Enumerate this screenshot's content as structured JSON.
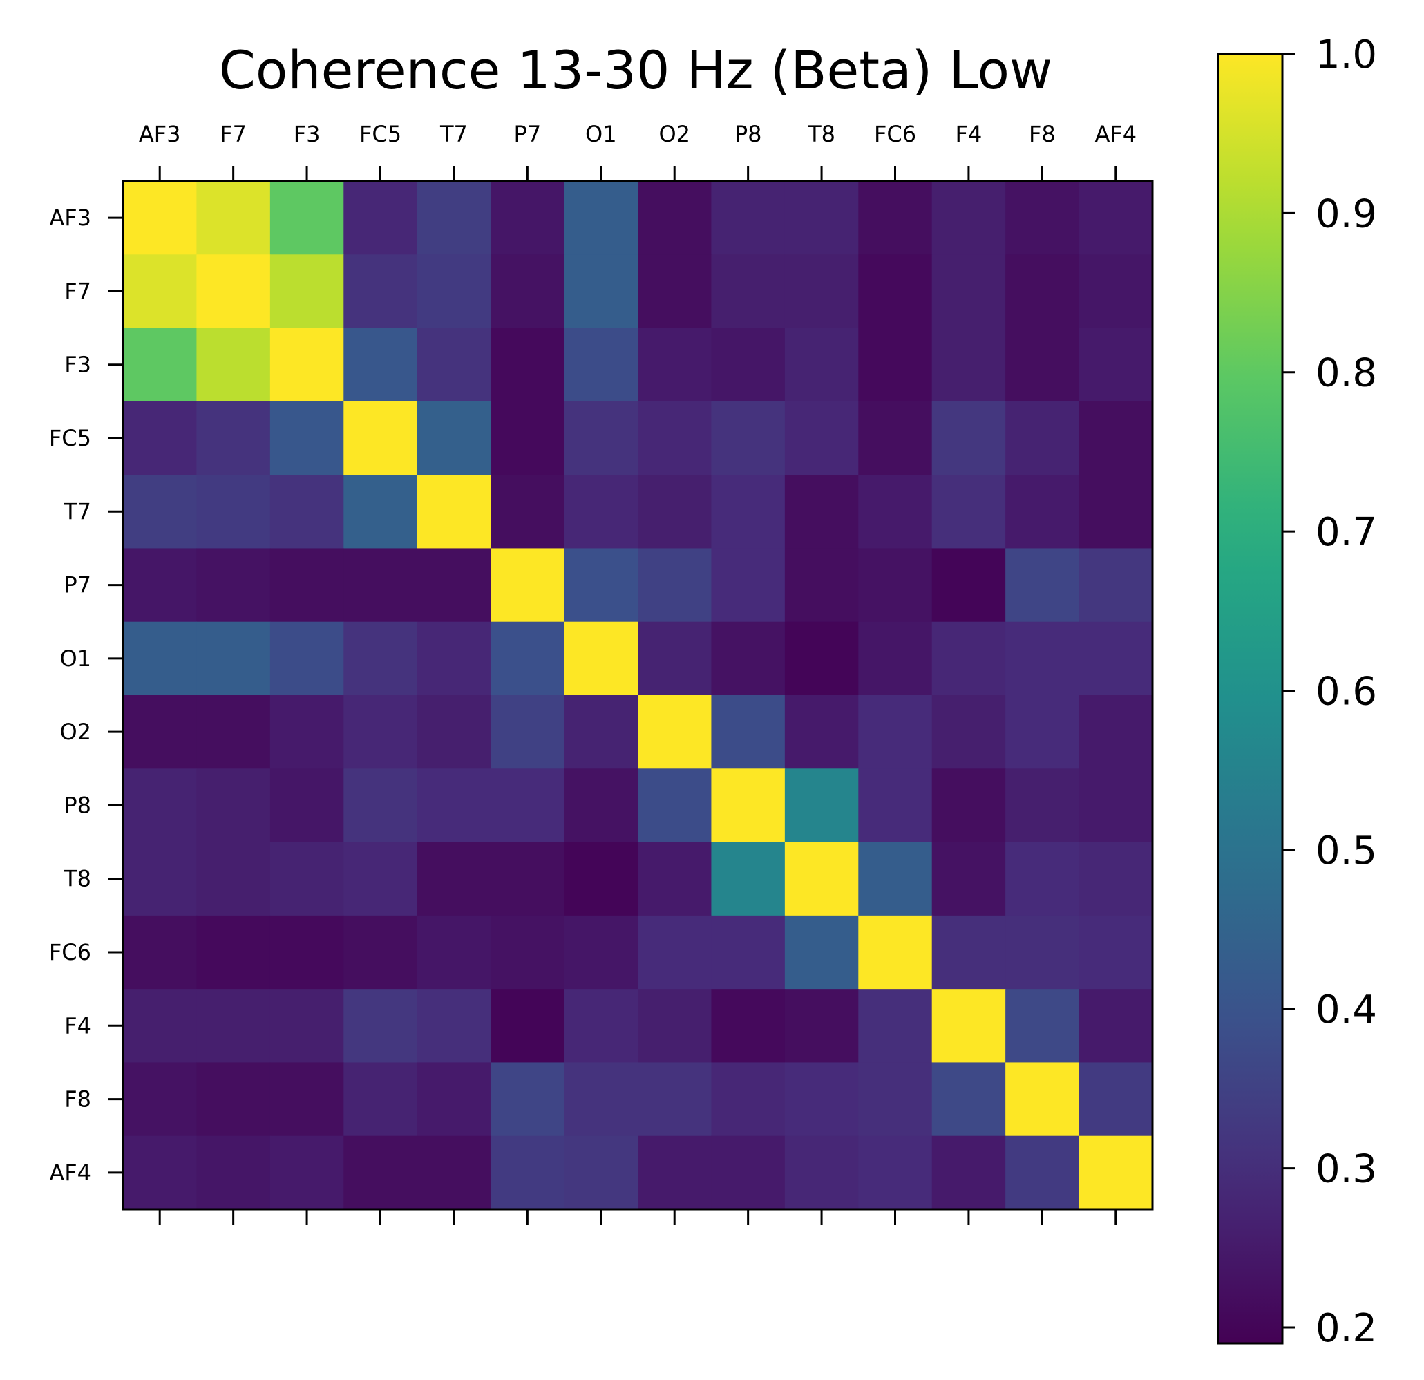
{
  "chart_data": {
    "type": "heatmap",
    "title": "Coherence 13-30 Hz (Beta) Low",
    "x_labels": [
      "AF3",
      "F7",
      "F3",
      "FC5",
      "T7",
      "P7",
      "O1",
      "O2",
      "P8",
      "T8",
      "FC6",
      "F4",
      "F8",
      "AF4"
    ],
    "y_labels": [
      "AF3",
      "F7",
      "F3",
      "FC5",
      "T7",
      "P7",
      "O1",
      "O2",
      "P8",
      "T8",
      "FC6",
      "F4",
      "F8",
      "AF4"
    ],
    "x_tick_position": "top",
    "colormap": "viridis",
    "colorbar": {
      "min": 0.19,
      "max": 1.0,
      "ticks": [
        0.2,
        0.3,
        0.4,
        0.5,
        0.6,
        0.7,
        0.8,
        0.9,
        1.0
      ],
      "tick_labels": [
        "0.2",
        "0.3",
        "0.4",
        "0.5",
        "0.6",
        "0.7",
        "0.8",
        "0.9",
        "1.0"
      ]
    },
    "values": [
      [
        1.0,
        0.96,
        0.8,
        0.28,
        0.34,
        0.24,
        0.43,
        0.22,
        0.27,
        0.27,
        0.22,
        0.26,
        0.23,
        0.25
      ],
      [
        0.96,
        1.0,
        0.92,
        0.31,
        0.33,
        0.23,
        0.43,
        0.22,
        0.26,
        0.26,
        0.21,
        0.26,
        0.22,
        0.24
      ],
      [
        0.8,
        0.92,
        1.0,
        0.41,
        0.31,
        0.21,
        0.38,
        0.25,
        0.24,
        0.27,
        0.21,
        0.26,
        0.22,
        0.25
      ],
      [
        0.28,
        0.31,
        0.41,
        1.0,
        0.44,
        0.21,
        0.31,
        0.28,
        0.31,
        0.28,
        0.22,
        0.32,
        0.27,
        0.22
      ],
      [
        0.34,
        0.33,
        0.31,
        0.44,
        1.0,
        0.22,
        0.28,
        0.26,
        0.29,
        0.22,
        0.25,
        0.3,
        0.25,
        0.22
      ],
      [
        0.24,
        0.23,
        0.22,
        0.22,
        0.22,
        1.0,
        0.39,
        0.35,
        0.29,
        0.22,
        0.23,
        0.2,
        0.36,
        0.32
      ],
      [
        0.43,
        0.43,
        0.38,
        0.31,
        0.28,
        0.39,
        1.0,
        0.27,
        0.23,
        0.2,
        0.24,
        0.28,
        0.29,
        0.29
      ],
      [
        0.22,
        0.22,
        0.25,
        0.28,
        0.26,
        0.35,
        0.27,
        1.0,
        0.38,
        0.25,
        0.29,
        0.26,
        0.29,
        0.25
      ],
      [
        0.27,
        0.26,
        0.24,
        0.31,
        0.29,
        0.29,
        0.23,
        0.38,
        1.0,
        0.56,
        0.29,
        0.22,
        0.26,
        0.25
      ],
      [
        0.27,
        0.26,
        0.27,
        0.28,
        0.22,
        0.22,
        0.2,
        0.25,
        0.56,
        1.0,
        0.43,
        0.23,
        0.29,
        0.28
      ],
      [
        0.22,
        0.21,
        0.21,
        0.22,
        0.24,
        0.23,
        0.24,
        0.29,
        0.29,
        0.43,
        1.0,
        0.3,
        0.3,
        0.29
      ],
      [
        0.26,
        0.26,
        0.26,
        0.32,
        0.3,
        0.2,
        0.28,
        0.26,
        0.21,
        0.22,
        0.3,
        1.0,
        0.37,
        0.25
      ],
      [
        0.23,
        0.22,
        0.22,
        0.27,
        0.25,
        0.36,
        0.31,
        0.31,
        0.28,
        0.29,
        0.3,
        0.37,
        1.0,
        0.33
      ],
      [
        0.25,
        0.24,
        0.25,
        0.22,
        0.22,
        0.33,
        0.32,
        0.25,
        0.25,
        0.28,
        0.29,
        0.25,
        0.33,
        1.0
      ]
    ]
  }
}
